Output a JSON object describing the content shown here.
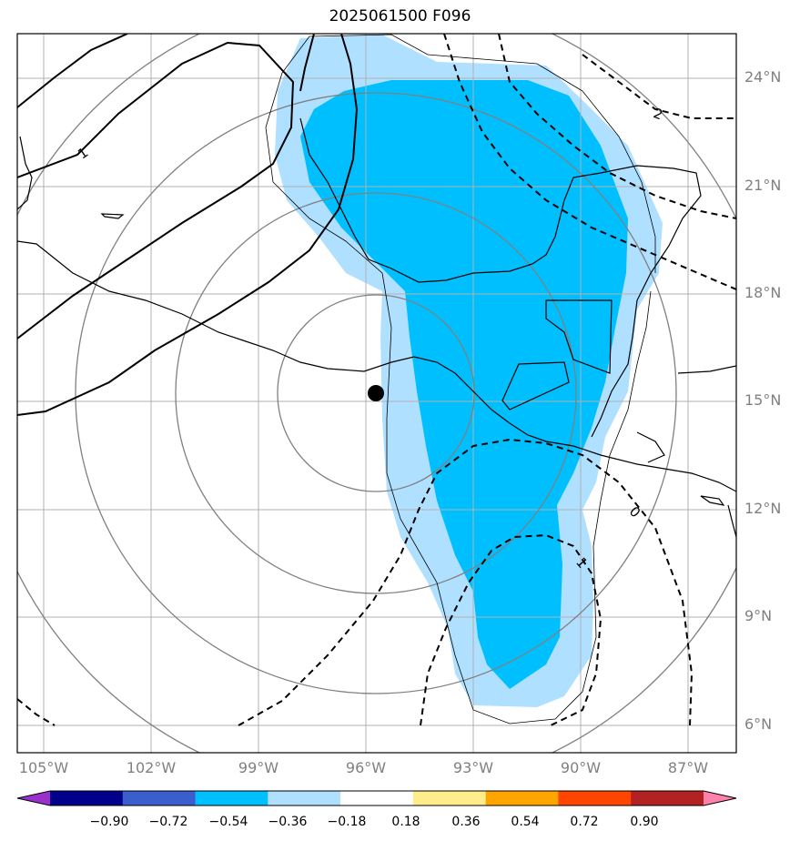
{
  "title": "2025061500 F096",
  "lat_labels": [
    "24°N",
    "21°N",
    "18°N",
    "15°N",
    "12°N",
    "9°N",
    "6°N"
  ],
  "lon_labels": [
    "105°W",
    "102°W",
    "99°W",
    "96°W",
    "93°W",
    "90°W",
    "87°W"
  ],
  "contour_labels": [
    "1",
    "2",
    "0",
    "1"
  ],
  "colorbar": {
    "ticks": [
      "−0.90",
      "−0.72",
      "−0.54",
      "−0.36",
      "−0.18",
      "0.18",
      "0.36",
      "0.54",
      "0.72",
      "0.90"
    ],
    "colors": [
      "#9932CC",
      "#00008B",
      "#3A5FCD",
      "#00BFFF",
      "#B0E0FF",
      "#FFFFFF",
      "#FFEC8B",
      "#FFA500",
      "#FF4500",
      "#B22222",
      "#FF82AB"
    ]
  },
  "storm_center": {
    "lat": 15.2,
    "lon": -95.7
  }
}
